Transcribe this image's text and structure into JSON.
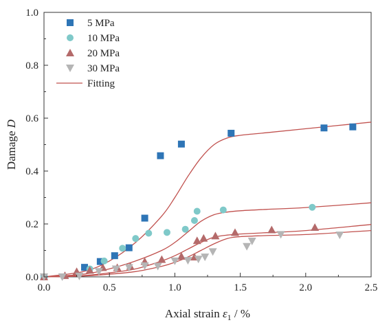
{
  "chart_data": {
    "type": "scatter",
    "xlabel": "Axial strain",
    "xlabel_symbol": "ε",
    "xlabel_sub": "1",
    "xlabel_unit": " / %",
    "ylabel": "Damage",
    "ylabel_symbol": "D",
    "xlim": [
      0,
      2.5
    ],
    "ylim": [
      0,
      1.0
    ],
    "x_ticks": [
      "0.0",
      "0.5",
      "1.0",
      "1.5",
      "2.0",
      "2.5"
    ],
    "y_ticks": [
      "0.0",
      "0.2",
      "0.4",
      "0.6",
      "0.8",
      "1.0"
    ],
    "grid": false,
    "legend_position": "top-left",
    "series": [
      {
        "name": "5  MPa",
        "marker": "square",
        "color": "#2e75b6",
        "points": [
          [
            0.0,
            0.0
          ],
          [
            0.31,
            0.036
          ],
          [
            0.43,
            0.058
          ],
          [
            0.54,
            0.08
          ],
          [
            0.65,
            0.11
          ],
          [
            0.77,
            0.222
          ],
          [
            0.89,
            0.458
          ],
          [
            1.05,
            0.502
          ],
          [
            1.43,
            0.543
          ],
          [
            2.14,
            0.563
          ],
          [
            2.36,
            0.567
          ]
        ]
      },
      {
        "name": "10 MPa",
        "marker": "circle",
        "color": "#7fc9c9",
        "points": [
          [
            0.0,
            0.0
          ],
          [
            0.35,
            0.03
          ],
          [
            0.46,
            0.06
          ],
          [
            0.6,
            0.108
          ],
          [
            0.7,
            0.145
          ],
          [
            0.8,
            0.165
          ],
          [
            0.94,
            0.168
          ],
          [
            1.08,
            0.18
          ],
          [
            1.15,
            0.213
          ],
          [
            1.17,
            0.248
          ],
          [
            1.37,
            0.253
          ],
          [
            2.05,
            0.263
          ]
        ]
      },
      {
        "name": "20 MPa",
        "marker": "triangle-up",
        "color": "#b46a6a",
        "points": [
          [
            0.0,
            0.0
          ],
          [
            0.16,
            0.005
          ],
          [
            0.25,
            0.02
          ],
          [
            0.35,
            0.025
          ],
          [
            0.45,
            0.035
          ],
          [
            0.56,
            0.035
          ],
          [
            0.66,
            0.04
          ],
          [
            0.77,
            0.058
          ],
          [
            0.9,
            0.066
          ],
          [
            1.05,
            0.078
          ],
          [
            1.15,
            0.075
          ],
          [
            1.17,
            0.137
          ],
          [
            1.22,
            0.146
          ],
          [
            1.31,
            0.155
          ],
          [
            1.46,
            0.168
          ],
          [
            1.74,
            0.178
          ],
          [
            2.07,
            0.187
          ]
        ]
      },
      {
        "name": "30 MPa",
        "marker": "triangle-down",
        "color": "#b5b5b5",
        "points": [
          [
            0.0,
            0.0
          ],
          [
            0.14,
            0.0
          ],
          [
            0.27,
            0.003
          ],
          [
            0.42,
            0.02
          ],
          [
            0.55,
            0.03
          ],
          [
            0.65,
            0.035
          ],
          [
            0.77,
            0.042
          ],
          [
            0.87,
            0.04
          ],
          [
            1.0,
            0.06
          ],
          [
            1.1,
            0.062
          ],
          [
            1.18,
            0.067
          ],
          [
            1.23,
            0.075
          ],
          [
            1.29,
            0.095
          ],
          [
            1.55,
            0.115
          ],
          [
            1.59,
            0.135
          ],
          [
            1.81,
            0.16
          ],
          [
            2.26,
            0.158
          ]
        ]
      }
    ],
    "fitting": {
      "name": "Fitting",
      "color": "#c0504d",
      "curves": [
        {
          "x": [
            0.0,
            0.3,
            0.5,
            0.7,
            0.9,
            1.0,
            1.1,
            1.2,
            1.3,
            1.4,
            1.5,
            1.7,
            2.0,
            2.5
          ],
          "y": [
            0.0,
            0.02,
            0.06,
            0.13,
            0.23,
            0.3,
            0.38,
            0.45,
            0.5,
            0.525,
            0.535,
            0.545,
            0.56,
            0.585
          ]
        },
        {
          "x": [
            0.0,
            0.3,
            0.5,
            0.7,
            0.9,
            1.0,
            1.1,
            1.2,
            1.3,
            1.4,
            1.5,
            1.7,
            2.0,
            2.5
          ],
          "y": [
            0.0,
            0.01,
            0.03,
            0.06,
            0.1,
            0.13,
            0.17,
            0.21,
            0.235,
            0.245,
            0.25,
            0.255,
            0.262,
            0.28
          ]
        },
        {
          "x": [
            0.0,
            0.3,
            0.5,
            0.7,
            0.9,
            1.0,
            1.1,
            1.2,
            1.3,
            1.4,
            1.5,
            1.7,
            2.0,
            2.5
          ],
          "y": [
            0.0,
            0.005,
            0.015,
            0.03,
            0.06,
            0.08,
            0.105,
            0.13,
            0.15,
            0.158,
            0.162,
            0.167,
            0.175,
            0.198
          ]
        },
        {
          "x": [
            0.0,
            0.3,
            0.5,
            0.7,
            0.9,
            1.0,
            1.1,
            1.2,
            1.3,
            1.4,
            1.5,
            1.7,
            2.0,
            2.5
          ],
          "y": [
            0.0,
            0.003,
            0.01,
            0.02,
            0.04,
            0.055,
            0.075,
            0.1,
            0.125,
            0.145,
            0.152,
            0.156,
            0.16,
            0.175
          ]
        }
      ]
    }
  }
}
